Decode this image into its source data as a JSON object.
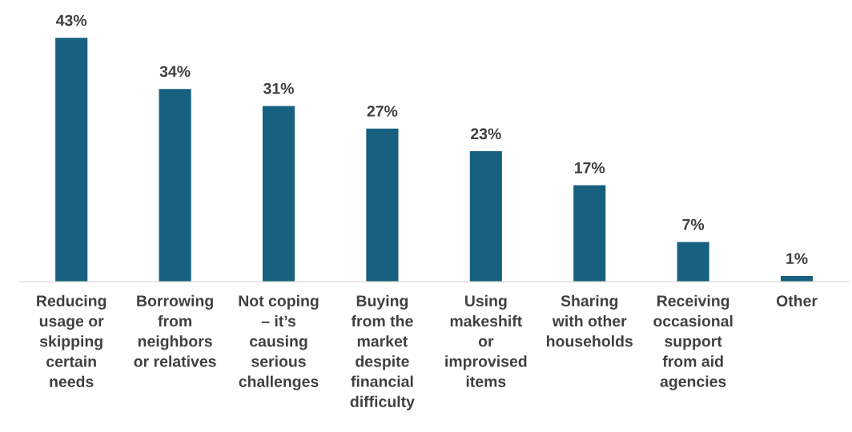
{
  "chart_data": {
    "type": "bar",
    "categories": [
      "Reducing\nusage or\nskipping\ncertain\nneeds",
      "Borrowing\nfrom\nneighbors\nor relatives",
      "Not coping\n– it’s\ncausing\nserious\nchallenges",
      "Buying\nfrom the\nmarket\ndespite\nfinancial\ndifficulty",
      "Using\nmakeshift\nor\nimprovised\nitems",
      "Sharing\nwith other\nhouseholds",
      "Receiving\noccasional\nsupport\nfrom aid\nagencies",
      "Other"
    ],
    "values": [
      43,
      34,
      31,
      27,
      23,
      17,
      7,
      1
    ],
    "value_labels": [
      "43%",
      "34%",
      "31%",
      "27%",
      "23%",
      "17%",
      "7%",
      "1%"
    ],
    "color": "#17607f",
    "grid": false,
    "legend": false
  }
}
